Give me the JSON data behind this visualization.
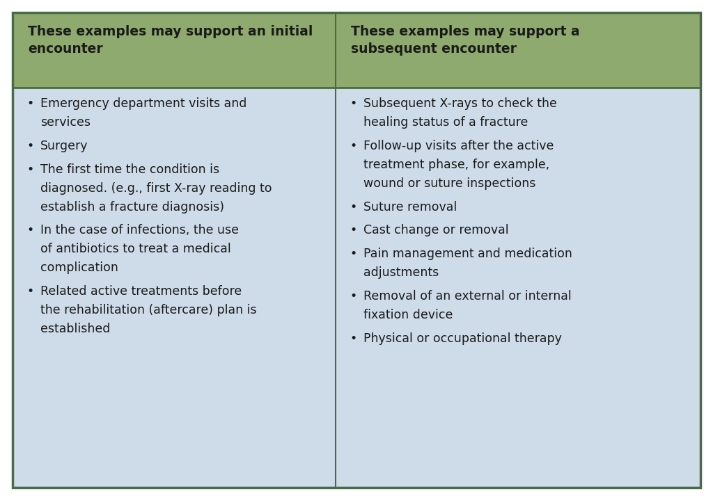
{
  "header_bg_color": "#8faa6e",
  "body_bg_color": "#cddce8",
  "header_text_color": "#1a1a1a",
  "body_text_color": "#1a1a1a",
  "border_color": "#4a6a4a",
  "col1_header": "These examples may support an initial\nencounter",
  "col2_header": "These examples may support a\nsubsequent encounter",
  "col1_items": [
    "Emergency department visits and\nservices",
    "Surgery",
    "The first time the condition is\ndiagnosed. (e.g., first X-ray reading to\nestablish a fracture diagnosis)",
    "In the case of infections, the use\nof antibiotics to treat a medical\ncomplication",
    "Related active treatments before\nthe rehabilitation (aftercare) plan is\nestablished"
  ],
  "col2_items": [
    "Subsequent X-rays to check the\nhealing status of a fracture",
    "Follow-up visits after the active\ntreatment phase, for example,\nwound or suture inspections",
    "Suture removal",
    "Cast change or removal",
    "Pain management and medication\nadjustments",
    "Removal of an external or internal\nfixation device",
    "Physical or occupational therapy"
  ],
  "font_family": "DejaVu Sans",
  "header_fontsize": 13.5,
  "body_fontsize": 12.5,
  "fig_w": 10.24,
  "fig_h": 7.19,
  "dpi": 100
}
